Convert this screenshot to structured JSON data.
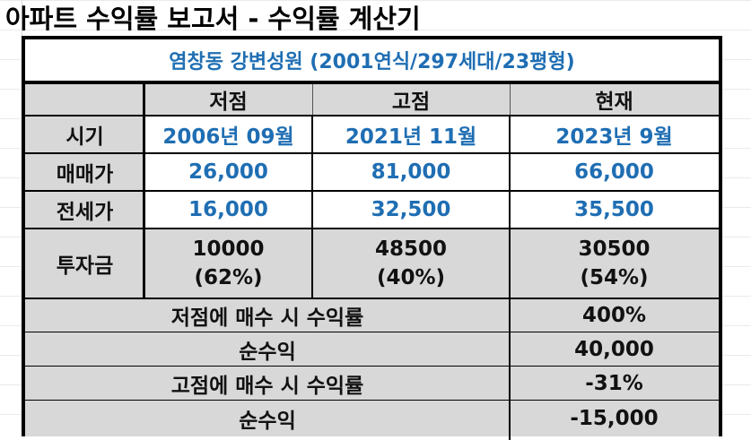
{
  "title": "아파트 수익률 보고서 - 수익률 계산기",
  "apartment": "염창동 강변성원 (2001연식/297세대/23평형)",
  "columns": [
    "저점",
    "고점",
    "현재"
  ],
  "rows": {
    "period": {
      "label": "시기",
      "values": [
        "2006년 09월",
        "2021년 11월",
        "2023년 9월"
      ]
    },
    "price": {
      "label": "매매가",
      "values": [
        "26,000",
        "81,000",
        "66,000"
      ]
    },
    "jeonse": {
      "label": "전세가",
      "values": [
        "16,000",
        "32,500",
        "35,500"
      ]
    },
    "investment": {
      "label": "투자금",
      "values": [
        {
          "amount": "10000",
          "ratio": "(62%)"
        },
        {
          "amount": "48500",
          "ratio": "(40%)"
        },
        {
          "amount": "30500",
          "ratio": "(54%)"
        }
      ]
    }
  },
  "summary": [
    {
      "label": "저점에 매수 시 수익률",
      "value": "400%"
    },
    {
      "label": "순수익",
      "value": "40,000"
    },
    {
      "label": "고점에 매수 시 수익률",
      "value": "-31%"
    },
    {
      "label": "순수익",
      "value": "-15,000"
    }
  ],
  "colors": {
    "accent_blue": "#1f6eb3",
    "header_grey": "#d8d8d8"
  }
}
